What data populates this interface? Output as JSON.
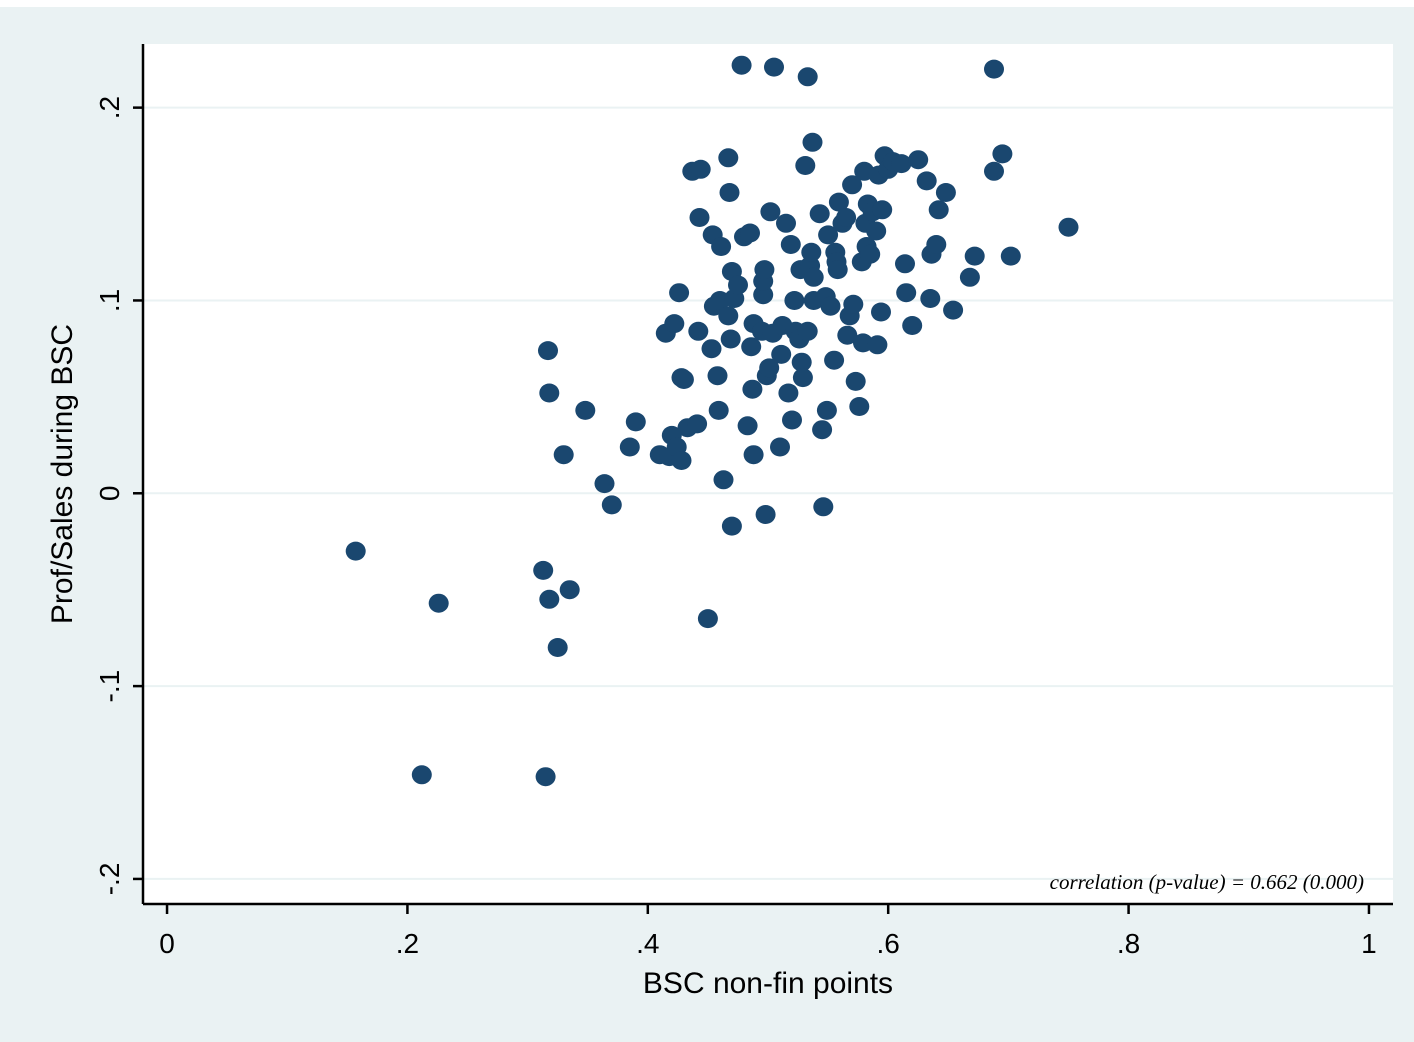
{
  "colors": {
    "background": "#eaf2f3",
    "plot_area": "#ffffff",
    "marker": "#1a476f",
    "grid": "#eaf2f3"
  },
  "chart_data": {
    "type": "scatter",
    "xlabel": "BSC non-fin points",
    "ylabel": "Prof/Sales during BSC",
    "xlim": [
      -0.02,
      1.02
    ],
    "ylim": [
      -0.213,
      0.233
    ],
    "xticks": [
      0,
      0.2,
      0.4,
      0.6,
      0.8,
      1
    ],
    "xtick_labels": [
      "0",
      ".2",
      ".4",
      ".6",
      ".8",
      "1"
    ],
    "yticks": [
      -0.2,
      -0.1,
      0,
      0.1,
      0.2
    ],
    "ytick_labels": [
      "-.2",
      "-.1",
      "0",
      ".1",
      ".2"
    ],
    "grid": true,
    "annotation": "correlation (p-value) = 0.662 (0.000)",
    "points": [
      [
        0.157,
        -0.03
      ],
      [
        0.212,
        -0.146
      ],
      [
        0.226,
        -0.057
      ],
      [
        0.313,
        -0.04
      ],
      [
        0.315,
        -0.147
      ],
      [
        0.318,
        -0.055
      ],
      [
        0.325,
        -0.08
      ],
      [
        0.335,
        -0.05
      ],
      [
        0.317,
        0.074
      ],
      [
        0.318,
        0.052
      ],
      [
        0.33,
        0.02
      ],
      [
        0.348,
        0.043
      ],
      [
        0.364,
        0.005
      ],
      [
        0.37,
        -0.006
      ],
      [
        0.385,
        0.024
      ],
      [
        0.39,
        0.037
      ],
      [
        0.41,
        0.02
      ],
      [
        0.415,
        0.083
      ],
      [
        0.418,
        0.019
      ],
      [
        0.42,
        0.03
      ],
      [
        0.422,
        0.088
      ],
      [
        0.424,
        0.024
      ],
      [
        0.426,
        0.104
      ],
      [
        0.428,
        0.017
      ],
      [
        0.428,
        0.06
      ],
      [
        0.43,
        0.059
      ],
      [
        0.433,
        0.034
      ],
      [
        0.437,
        0.167
      ],
      [
        0.441,
        0.036
      ],
      [
        0.442,
        0.084
      ],
      [
        0.443,
        0.143
      ],
      [
        0.444,
        0.168
      ],
      [
        0.45,
        -0.065
      ],
      [
        0.453,
        0.075
      ],
      [
        0.454,
        0.134
      ],
      [
        0.455,
        0.097
      ],
      [
        0.458,
        0.061
      ],
      [
        0.459,
        0.043
      ],
      [
        0.46,
        0.1
      ],
      [
        0.461,
        0.128
      ],
      [
        0.463,
        0.007
      ],
      [
        0.467,
        0.092
      ],
      [
        0.467,
        0.174
      ],
      [
        0.468,
        0.156
      ],
      [
        0.469,
        0.08
      ],
      [
        0.47,
        -0.017
      ],
      [
        0.47,
        0.115
      ],
      [
        0.472,
        0.101
      ],
      [
        0.475,
        0.108
      ],
      [
        0.478,
        0.222
      ],
      [
        0.48,
        0.133
      ],
      [
        0.483,
        0.035
      ],
      [
        0.485,
        0.135
      ],
      [
        0.486,
        0.076
      ],
      [
        0.487,
        0.054
      ],
      [
        0.488,
        0.088
      ],
      [
        0.488,
        0.02
      ],
      [
        0.495,
        0.084
      ],
      [
        0.496,
        0.103
      ],
      [
        0.496,
        0.11
      ],
      [
        0.497,
        0.116
      ],
      [
        0.498,
        -0.011
      ],
      [
        0.499,
        0.061
      ],
      [
        0.501,
        0.065
      ],
      [
        0.502,
        0.146
      ],
      [
        0.504,
        0.083
      ],
      [
        0.505,
        0.221
      ],
      [
        0.51,
        0.024
      ],
      [
        0.511,
        0.072
      ],
      [
        0.512,
        0.087
      ],
      [
        0.515,
        0.14
      ],
      [
        0.517,
        0.052
      ],
      [
        0.519,
        0.129
      ],
      [
        0.52,
        0.038
      ],
      [
        0.522,
        0.1
      ],
      [
        0.523,
        0.084
      ],
      [
        0.526,
        0.08
      ],
      [
        0.527,
        0.116
      ],
      [
        0.528,
        0.068
      ],
      [
        0.529,
        0.06
      ],
      [
        0.531,
        0.17
      ],
      [
        0.533,
        0.216
      ],
      [
        0.533,
        0.084
      ],
      [
        0.535,
        0.118
      ],
      [
        0.536,
        0.125
      ],
      [
        0.537,
        0.182
      ],
      [
        0.538,
        0.112
      ],
      [
        0.538,
        0.1
      ],
      [
        0.543,
        0.145
      ],
      [
        0.545,
        0.033
      ],
      [
        0.546,
        -0.007
      ],
      [
        0.548,
        0.102
      ],
      [
        0.549,
        0.043
      ],
      [
        0.55,
        0.134
      ],
      [
        0.552,
        0.097
      ],
      [
        0.555,
        0.069
      ],
      [
        0.556,
        0.125
      ],
      [
        0.557,
        0.12
      ],
      [
        0.558,
        0.116
      ],
      [
        0.559,
        0.151
      ],
      [
        0.562,
        0.14
      ],
      [
        0.565,
        0.143
      ],
      [
        0.566,
        0.082
      ],
      [
        0.568,
        0.092
      ],
      [
        0.57,
        0.16
      ],
      [
        0.571,
        0.098
      ],
      [
        0.573,
        0.058
      ],
      [
        0.576,
        0.045
      ],
      [
        0.578,
        0.12
      ],
      [
        0.579,
        0.078
      ],
      [
        0.58,
        0.167
      ],
      [
        0.581,
        0.14
      ],
      [
        0.582,
        0.128
      ],
      [
        0.583,
        0.15
      ],
      [
        0.585,
        0.124
      ],
      [
        0.587,
        0.146
      ],
      [
        0.59,
        0.136
      ],
      [
        0.591,
        0.077
      ],
      [
        0.592,
        0.165
      ],
      [
        0.594,
        0.094
      ],
      [
        0.595,
        0.147
      ],
      [
        0.597,
        0.175
      ],
      [
        0.6,
        0.168
      ],
      [
        0.604,
        0.172
      ],
      [
        0.611,
        0.171
      ],
      [
        0.614,
        0.119
      ],
      [
        0.615,
        0.104
      ],
      [
        0.62,
        0.087
      ],
      [
        0.625,
        0.173
      ],
      [
        0.632,
        0.162
      ],
      [
        0.635,
        0.101
      ],
      [
        0.636,
        0.124
      ],
      [
        0.64,
        0.129
      ],
      [
        0.642,
        0.147
      ],
      [
        0.648,
        0.156
      ],
      [
        0.654,
        0.095
      ],
      [
        0.668,
        0.112
      ],
      [
        0.672,
        0.123
      ],
      [
        0.688,
        0.22
      ],
      [
        0.688,
        0.167
      ],
      [
        0.695,
        0.176
      ],
      [
        0.702,
        0.123
      ],
      [
        0.75,
        0.138
      ]
    ]
  }
}
